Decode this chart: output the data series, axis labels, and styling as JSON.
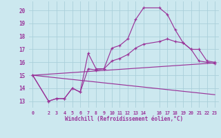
{
  "xlabel": "Windchill (Refroidissement éolien,°C)",
  "bg_color": "#cce8ef",
  "grid_color": "#aacfda",
  "line_color": "#993399",
  "ylim": [
    12.5,
    20.7
  ],
  "xlim": [
    -0.5,
    23.5
  ],
  "yticks": [
    13,
    14,
    15,
    16,
    17,
    18,
    19,
    20
  ],
  "xticks": [
    0,
    2,
    3,
    4,
    5,
    6,
    7,
    8,
    9,
    10,
    11,
    12,
    13,
    14,
    16,
    17,
    18,
    19,
    20,
    21,
    22,
    23
  ],
  "series_main": {
    "x": [
      0,
      2,
      3,
      4,
      5,
      6,
      7,
      8,
      9,
      10,
      11,
      12,
      13,
      14,
      16,
      17,
      18,
      19,
      20,
      21,
      22,
      23
    ],
    "y": [
      15.0,
      13.0,
      13.2,
      13.2,
      14.0,
      13.7,
      16.7,
      15.5,
      15.5,
      17.1,
      17.3,
      17.8,
      19.3,
      20.2,
      20.2,
      19.7,
      18.5,
      17.5,
      17.0,
      16.1,
      16.0,
      15.9
    ]
  },
  "series_mid": {
    "x": [
      0,
      2,
      3,
      4,
      5,
      6,
      7,
      8,
      9,
      10,
      11,
      12,
      13,
      14,
      16,
      17,
      18,
      19,
      20,
      21,
      22,
      23
    ],
    "y": [
      15.0,
      13.0,
      13.2,
      13.2,
      14.0,
      13.7,
      15.5,
      15.4,
      15.5,
      16.1,
      16.3,
      16.6,
      17.1,
      17.4,
      17.6,
      17.8,
      17.6,
      17.5,
      17.0,
      17.0,
      16.1,
      16.0
    ]
  },
  "line_upper": {
    "x": [
      0,
      23
    ],
    "y": [
      15.0,
      15.95
    ]
  },
  "line_lower": {
    "x": [
      0,
      23
    ],
    "y": [
      15.0,
      13.5
    ]
  }
}
